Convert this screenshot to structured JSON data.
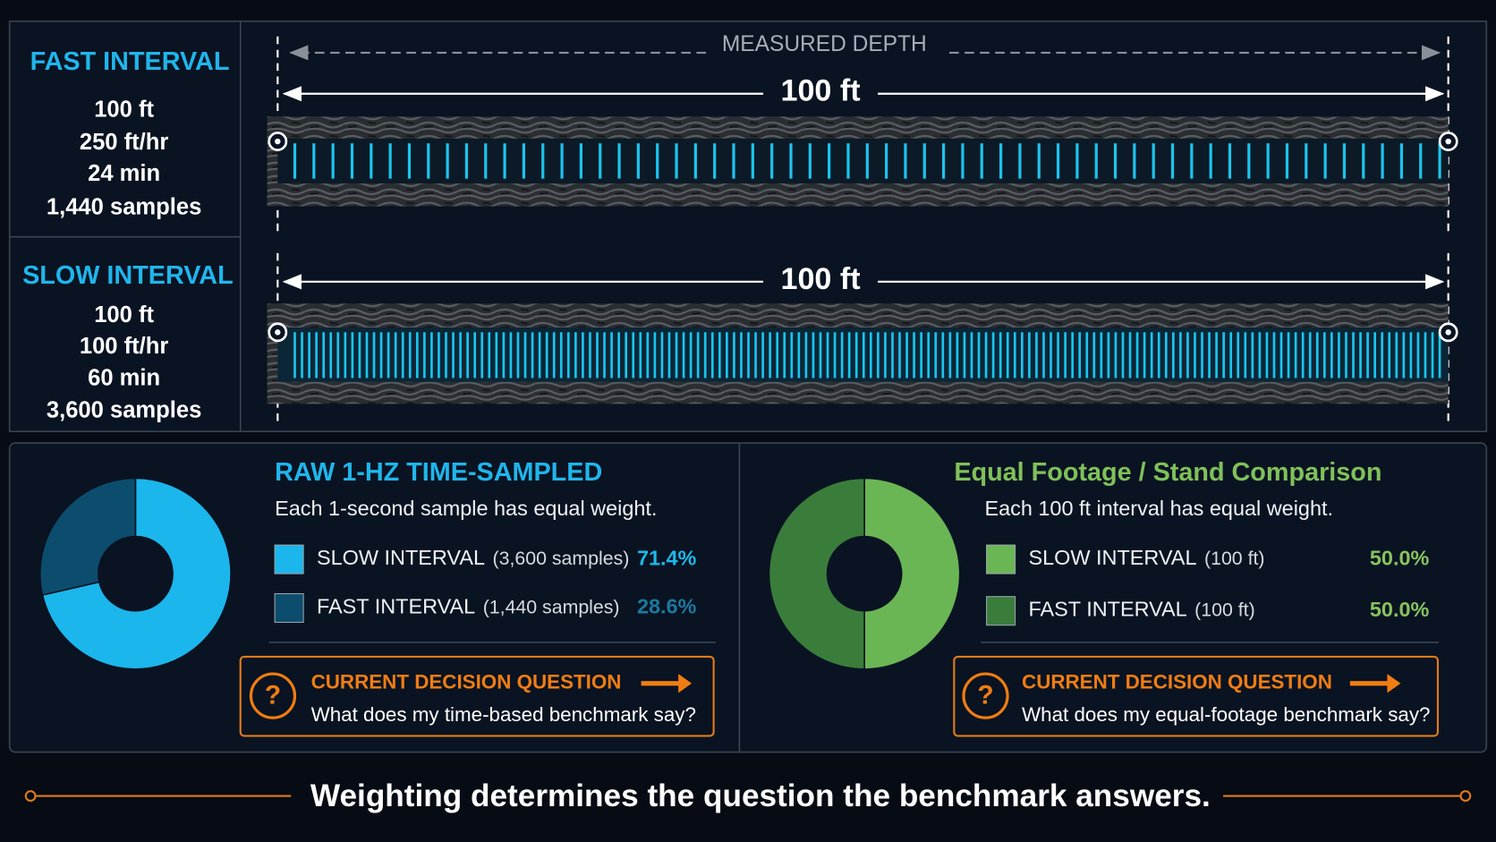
{
  "measured_depth": "MEASURED DEPTH",
  "intervals": [
    {
      "title": "FAST INTERVAL",
      "lines": [
        "100 ft",
        "250 ft/hr",
        "24 min",
        "1,440 samples"
      ],
      "span_label": "100 ft"
    },
    {
      "title": "SLOW INTERVAL",
      "lines": [
        "100 ft",
        "100 ft/hr",
        "60 min",
        "3,600 samples"
      ],
      "span_label": "100 ft"
    }
  ],
  "chart_data": [
    {
      "type": "pie",
      "title": "RAW 1-HZ TIME-SAMPLED",
      "subtitle": "Each 1-second sample has equal weight.",
      "categories": [
        "SLOW INTERVAL",
        "FAST INTERVAL"
      ],
      "category_notes": [
        "(3,600 samples)",
        "(1,440 samples)"
      ],
      "values": [
        71.4,
        28.6
      ],
      "value_labels": [
        "71.4%",
        "28.6%"
      ],
      "colors": [
        "#1bb6ec",
        "#0c4d6e"
      ],
      "question_title": "CURRENT DECISION QUESTION",
      "question_text": "What does my time-based benchmark say?"
    },
    {
      "type": "pie",
      "title": "Equal Footage / Stand Comparison",
      "subtitle": "Each 100 ft interval has equal weight.",
      "categories": [
        "SLOW INTERVAL",
        "FAST INTERVAL"
      ],
      "category_notes": [
        "(100 ft)",
        "(100 ft)"
      ],
      "values": [
        50.0,
        50.0
      ],
      "value_labels": [
        "50.0%",
        "50.0%"
      ],
      "colors": [
        "#6ab655",
        "#3a7d3b"
      ],
      "question_title": "CURRENT DECISION QUESTION",
      "question_text": "What does my equal-footage benchmark say?"
    }
  ],
  "footer": "Weighting determines the question the benchmark answers."
}
